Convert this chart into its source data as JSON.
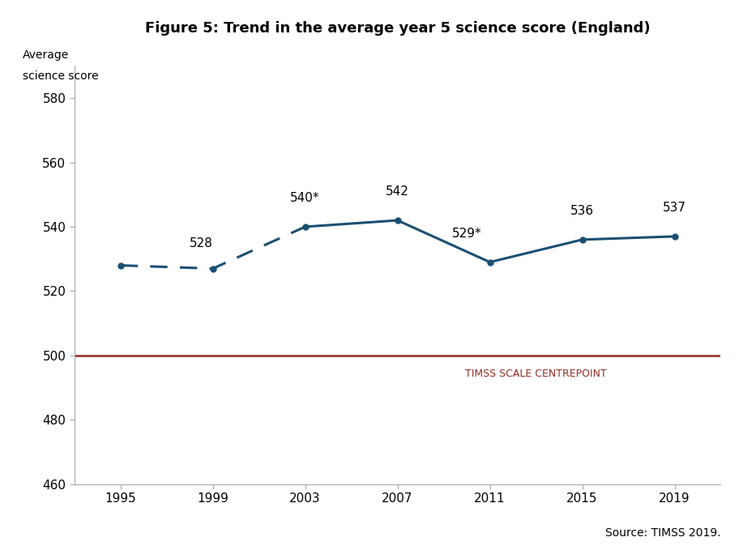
{
  "title": "Figure 5: Trend in the average year 5 science score (England)",
  "ylabel_line1": "Average",
  "ylabel_line2": "science score",
  "source": "Source: TIMSS 2019.",
  "timss_label": "TIMSS SCALE CENTREPOINT",
  "timss_centrepoint": 500,
  "xlim": [
    1993,
    2021
  ],
  "ylim": [
    460,
    590
  ],
  "yticks": [
    460,
    480,
    500,
    520,
    540,
    560,
    580
  ],
  "xticks": [
    1995,
    1999,
    2003,
    2007,
    2011,
    2015,
    2019
  ],
  "dashed_years": [
    1995,
    1999,
    2003
  ],
  "dashed_values": [
    528,
    527,
    540
  ],
  "solid_years": [
    2003,
    2007,
    2011,
    2015,
    2019
  ],
  "solid_values": [
    540,
    542,
    529,
    536,
    537
  ],
  "all_years": [
    1995,
    1999,
    2003,
    2007,
    2011,
    2015,
    2019
  ],
  "all_values": [
    528,
    527,
    540,
    542,
    529,
    536,
    537
  ],
  "labels": [
    "528",
    "",
    "540",
    "542",
    "529",
    "536",
    "537"
  ],
  "label_offsets_x": [
    3,
    0,
    0,
    0,
    -1,
    0,
    0
  ],
  "label_offsets_y": [
    5,
    0,
    7,
    7,
    7,
    7,
    7
  ],
  "label_ha": [
    "left",
    "center",
    "center",
    "center",
    "center",
    "center",
    "center"
  ],
  "starred": [
    false,
    false,
    true,
    false,
    true,
    false,
    false
  ],
  "line_color": "#1b4f72",
  "centrepoint_color": "#922b21",
  "background_color": "#ffffff",
  "title_fontsize": 13,
  "label_fontsize": 11,
  "axis_fontsize": 11,
  "ylabel_fontsize": 10,
  "source_fontsize": 10
}
